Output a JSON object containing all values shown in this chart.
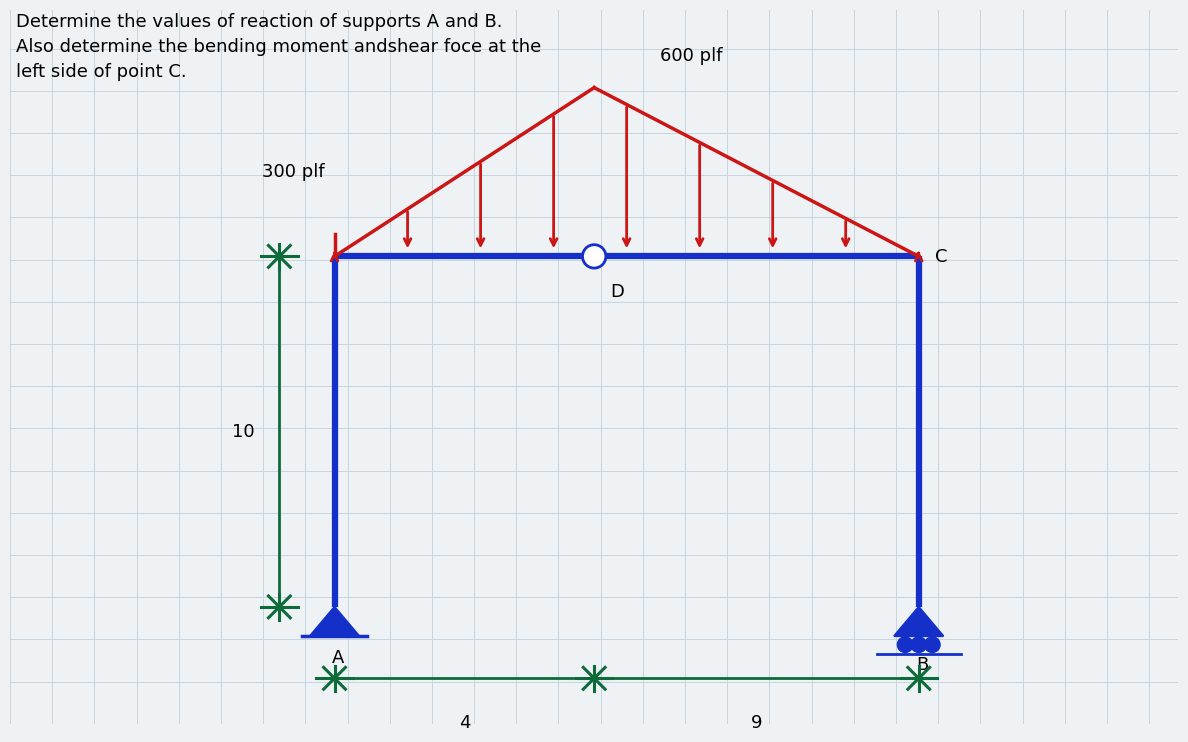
{
  "title_text": "Determine the values of reaction of supports A and B.\nAlso determine the bending moment andshear foce at the\nleft side of point C.",
  "bg_color": "#eef2f5",
  "grid_color": "#c5d5e0",
  "struct_color": "#1530c8",
  "load_color": "#cc1515",
  "dim_color": "#0d6b3a",
  "label_300plf": "300 plf",
  "label_600plf": "600 plf",
  "label_10": "10",
  "label_4": "4",
  "label_9": "9",
  "label_A": "A",
  "label_B": "B",
  "label_C": "C",
  "label_D": "D",
  "font_size_title": 13,
  "font_size_labels": 12,
  "A_x": 5.0,
  "A_y": 1.8,
  "B_x": 14.0,
  "B_y": 1.8,
  "top_y": 7.2,
  "D_x": 9.0,
  "D_y": 7.2,
  "C_x": 14.0,
  "C_y": 7.2,
  "peak_x": 9.0,
  "peak_y": 9.8,
  "load_left_x": 5.0,
  "load_right_x": 14.0,
  "xlim": [
    0,
    18
  ],
  "ylim": [
    0,
    11
  ]
}
